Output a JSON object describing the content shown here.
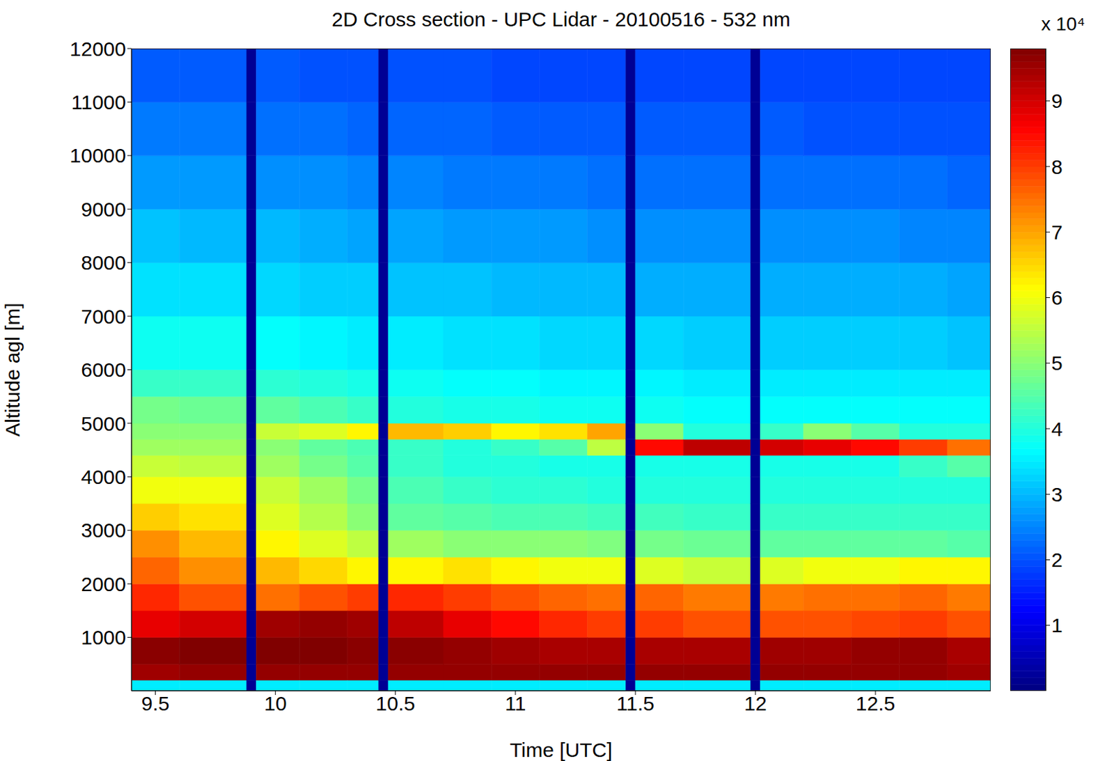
{
  "chart_data": {
    "type": "heatmap",
    "title": "2D Cross section - UPC Lidar - 20100516 - 532 nm",
    "x_label": "Time [UTC]",
    "y_label": "Altitude agl [m]",
    "xlim": [
      9.4,
      12.98
    ],
    "xticks": [
      9.5,
      10,
      10.5,
      11,
      11.5,
      12,
      12.5
    ],
    "ylim": [
      0,
      12000
    ],
    "yticks": [
      1000,
      2000,
      3000,
      4000,
      5000,
      6000,
      7000,
      8000,
      9000,
      10000,
      11000,
      12000
    ],
    "x_edges": [
      9.4,
      9.6,
      9.88,
      9.92,
      10.1,
      10.3,
      10.43,
      10.47,
      10.7,
      10.9,
      11.1,
      11.3,
      11.46,
      11.5,
      11.7,
      11.98,
      12.02,
      12.2,
      12.4,
      12.6,
      12.8,
      12.98
    ],
    "y_edges": [
      0,
      200,
      500,
      1000,
      1500,
      2000,
      2500,
      3000,
      3500,
      4000,
      4400,
      4700,
      5000,
      5500,
      6000,
      7000,
      8000,
      9000,
      10000,
      11000,
      12000
    ],
    "cells": [
      [
        35000,
        95000,
        97000,
        88000,
        82000,
        76000,
        72000,
        66000,
        60000,
        56000,
        52000,
        50000,
        48000,
        42000,
        38000,
        34000,
        31000,
        27000,
        24000,
        21000
      ],
      [
        35000,
        96000,
        98000,
        90000,
        78000,
        72000,
        68000,
        64000,
        60000,
        55000,
        52000,
        50000,
        47000,
        42000,
        38000,
        34000,
        30000,
        27000,
        24000,
        21000
      ],
      [
        2000,
        2000,
        2000,
        2000,
        2000,
        2000,
        2000,
        2000,
        2000,
        2000,
        2000,
        2000,
        2000,
        2000,
        2000,
        2000,
        2000,
        2000,
        2000,
        2000
      ],
      [
        35000,
        96000,
        98000,
        95000,
        75000,
        68000,
        62000,
        58000,
        56000,
        52000,
        50000,
        56000,
        46000,
        41000,
        37000,
        33000,
        30000,
        26000,
        23000,
        21000
      ],
      [
        35000,
        96000,
        98000,
        96000,
        78000,
        65000,
        58000,
        54000,
        52000,
        48000,
        46000,
        58000,
        44000,
        40000,
        36000,
        32000,
        29000,
        26000,
        23000,
        20000
      ],
      [
        35000,
        96000,
        97000,
        95000,
        80000,
        62000,
        55000,
        50000,
        48000,
        45000,
        44000,
        62000,
        42000,
        39000,
        35000,
        32000,
        28000,
        25000,
        22000,
        20000
      ],
      [
        2000,
        2000,
        2000,
        2000,
        2000,
        2000,
        2000,
        2000,
        2000,
        2000,
        2000,
        2000,
        2000,
        2000,
        2000,
        2000,
        2000,
        2000,
        2000,
        2000
      ],
      [
        35000,
        96000,
        97000,
        92000,
        82000,
        62000,
        52000,
        46000,
        44000,
        42000,
        42000,
        68000,
        40000,
        38000,
        35000,
        31000,
        28000,
        25000,
        22000,
        20000
      ],
      [
        35000,
        96000,
        96000,
        88000,
        80000,
        64000,
        50000,
        45000,
        42000,
        40000,
        40000,
        66000,
        39000,
        37000,
        34000,
        31000,
        27000,
        24000,
        22000,
        20000
      ],
      [
        35000,
        96000,
        95000,
        85000,
        78000,
        62000,
        50000,
        44000,
        41000,
        40000,
        42000,
        62000,
        39000,
        37000,
        34000,
        30000,
        27000,
        24000,
        21000,
        19000
      ],
      [
        35000,
        96000,
        94000,
        82000,
        76000,
        60000,
        50000,
        44000,
        41000,
        39000,
        45000,
        64000,
        38000,
        36000,
        33000,
        30000,
        27000,
        24000,
        21000,
        19000
      ],
      [
        35000,
        96000,
        94000,
        80000,
        75000,
        60000,
        49000,
        43000,
        40000,
        39000,
        55000,
        70000,
        38000,
        36000,
        33000,
        30000,
        26000,
        23000,
        21000,
        19000
      ],
      [
        2000,
        2000,
        2000,
        2000,
        2000,
        2000,
        2000,
        2000,
        2000,
        2000,
        2000,
        2000,
        2000,
        2000,
        2000,
        2000,
        2000,
        2000,
        2000,
        2000
      ],
      [
        35000,
        96000,
        94000,
        80000,
        76000,
        58000,
        48000,
        43000,
        40000,
        39000,
        85000,
        50000,
        38000,
        36000,
        33000,
        29000,
        26000,
        23000,
        21000,
        19000
      ],
      [
        35000,
        96000,
        94000,
        78000,
        74000,
        56000,
        47000,
        42000,
        40000,
        39000,
        92000,
        40000,
        37000,
        35000,
        32000,
        29000,
        26000,
        23000,
        21000,
        19000
      ],
      [
        2000,
        2000,
        2000,
        2000,
        2000,
        2000,
        2000,
        2000,
        2000,
        2000,
        2000,
        2000,
        2000,
        2000,
        2000,
        2000,
        2000,
        2000,
        2000,
        2000
      ],
      [
        35000,
        96000,
        95000,
        78000,
        74000,
        58000,
        46000,
        42000,
        40000,
        39000,
        90000,
        42000,
        37000,
        35000,
        32000,
        29000,
        26000,
        23000,
        21000,
        19000
      ],
      [
        35000,
        96000,
        95000,
        78000,
        75000,
        60000,
        46000,
        42000,
        40000,
        39000,
        88000,
        50000,
        37000,
        35000,
        32000,
        29000,
        26000,
        23000,
        20000,
        19000
      ],
      [
        35000,
        96000,
        96000,
        79000,
        75000,
        60000,
        46000,
        42000,
        40000,
        39000,
        85000,
        45000,
        37000,
        35000,
        32000,
        29000,
        26000,
        23000,
        20000,
        19000
      ],
      [
        35000,
        96000,
        96000,
        80000,
        76000,
        62000,
        46000,
        42000,
        40000,
        42000,
        80000,
        40000,
        37000,
        35000,
        32000,
        29000,
        25000,
        23000,
        20000,
        19000
      ],
      [
        35000,
        95000,
        94000,
        78000,
        74000,
        62000,
        45000,
        42000,
        40000,
        45000,
        75000,
        40000,
        37000,
        35000,
        31000,
        28000,
        25000,
        22000,
        20000,
        19000
      ]
    ],
    "colorbar": {
      "range": [
        0,
        98000
      ],
      "ticks": [
        {
          "value": 10000,
          "label": "1"
        },
        {
          "value": 20000,
          "label": "2"
        },
        {
          "value": 30000,
          "label": "3"
        },
        {
          "value": 40000,
          "label": "4"
        },
        {
          "value": 50000,
          "label": "5"
        },
        {
          "value": 60000,
          "label": "6"
        },
        {
          "value": 70000,
          "label": "7"
        },
        {
          "value": 80000,
          "label": "8"
        },
        {
          "value": 90000,
          "label": "9"
        }
      ],
      "label": "x 10⁴"
    }
  }
}
